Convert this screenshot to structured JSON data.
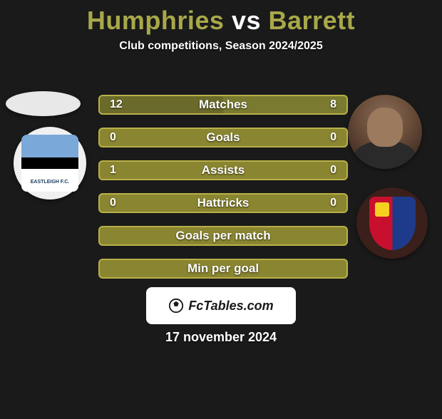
{
  "title": {
    "player1": "Humphries",
    "vs": "vs",
    "player2": "Barrett",
    "player1_color": "#a8a84a",
    "vs_color": "#ffffff",
    "player2_color": "#a8a84a"
  },
  "subtitle": "Club competitions, Season 2024/2025",
  "stats": {
    "row_bg_fallback": "#8a8530",
    "row_border": "#b8b048",
    "rows": [
      {
        "label": "Matches",
        "left": "12",
        "right": "8",
        "left_color": "#6a6a2a",
        "right_color": "#7a7a30"
      },
      {
        "label": "Goals",
        "left": "0",
        "right": "0",
        "left_color": "#8a8530",
        "right_color": "#8a8530"
      },
      {
        "label": "Assists",
        "left": "1",
        "right": "0",
        "left_color": "#8a8530",
        "right_color": "#8a8530"
      },
      {
        "label": "Hattricks",
        "left": "0",
        "right": "0",
        "left_color": "#8a8530",
        "right_color": "#8a8530"
      },
      {
        "label": "Goals per match",
        "left": "",
        "right": "",
        "left_color": "#8a8530",
        "right_color": "#8a8530"
      },
      {
        "label": "Min per goal",
        "left": "",
        "right": "",
        "left_color": "#8a8530",
        "right_color": "#8a8530"
      }
    ]
  },
  "footer": {
    "site": "FcTables.com",
    "date": "17 november 2024"
  },
  "colors": {
    "background": "#1a1a1a",
    "text": "#ffffff"
  }
}
